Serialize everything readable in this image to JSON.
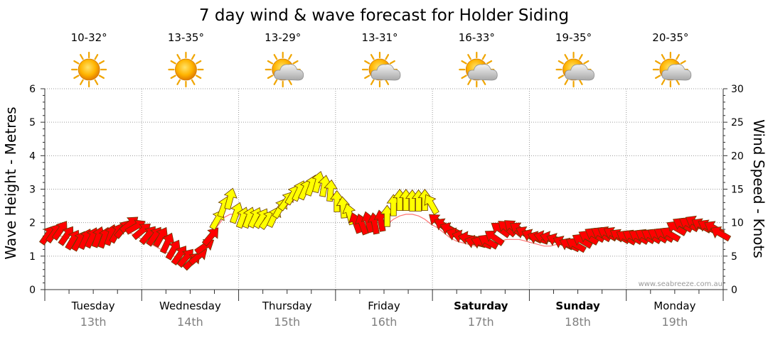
{
  "chart_data": {
    "type": "line",
    "title": "7 day wind & wave forecast for Holder Siding",
    "ylabel_left": "Wave Height - Metres",
    "ylabel_right": "Wind Speed - Knots",
    "ylim_left": [
      0,
      6
    ],
    "ylim_right": [
      0,
      30
    ],
    "yticks_left": [
      "0",
      "1",
      "2",
      "3",
      "4",
      "5",
      "6"
    ],
    "yticks_right": [
      "0",
      "5",
      "10",
      "15",
      "20",
      "25",
      "30"
    ],
    "grid": true,
    "watermark": "www.seabreeze.com.au",
    "days": [
      {
        "day": "Tuesday",
        "date": "13th",
        "temp": "10-32°",
        "icon": "sun-icon",
        "bold": false
      },
      {
        "day": "Wednesday",
        "date": "14th",
        "temp": "13-35°",
        "icon": "sun-icon",
        "bold": false
      },
      {
        "day": "Thursday",
        "date": "15th",
        "temp": "13-29°",
        "icon": "sun-cloud-icon",
        "bold": false
      },
      {
        "day": "Friday",
        "date": "16th",
        "temp": "13-31°",
        "icon": "sun-cloud-icon",
        "bold": false
      },
      {
        "day": "Saturday",
        "date": "17th",
        "temp": "16-33°",
        "icon": "sun-cloud-icon",
        "bold": true
      },
      {
        "day": "Sunday",
        "date": "18th",
        "temp": "19-35°",
        "icon": "sun-cloud-icon",
        "bold": true
      },
      {
        "day": "Monday",
        "date": "19th",
        "temp": "20-35°",
        "icon": "sun-cloud-icon",
        "bold": false
      }
    ],
    "series": [
      {
        "name": "Wind Speed",
        "units": "knots",
        "strong_color": "#ff0000",
        "light_color": "#ffff00",
        "values": [
          8.2,
          8.5,
          8.9,
          8.1,
          7.5,
          7.3,
          7.6,
          7.8,
          7.9,
          7.8,
          8.2,
          8.5,
          9.1,
          9.8,
          9.4,
          8.8,
          8.2,
          8.0,
          7.9,
          7.0,
          6.0,
          5.2,
          4.8,
          4.3,
          5.0,
          6.5,
          8.0,
          10.5,
          12.4,
          13.6,
          11.5,
          10.8,
          10.8,
          10.8,
          10.7,
          10.5,
          10.9,
          12.2,
          13.3,
          14.2,
          14.8,
          15.0,
          15.6,
          16.1,
          15.5,
          14.8,
          13.2,
          12.3,
          11.3,
          10.0,
          9.8,
          10.1,
          9.9,
          10.3,
          11.0,
          12.6,
          13.4,
          13.4,
          13.3,
          13.3,
          13.4,
          12.8,
          10.2,
          9.6,
          9.0,
          8.2,
          7.9,
          7.7,
          7.1,
          7.0,
          7.2,
          7.8,
          9.0,
          9.2,
          9.3,
          9.0,
          8.4,
          8.0,
          7.7,
          7.8,
          7.7,
          7.4,
          7.0,
          6.7,
          6.7,
          7.3,
          7.8,
          8.2,
          8.3,
          8.4,
          8.3,
          8.0,
          7.8,
          7.9,
          7.9,
          8.0,
          8.0,
          8.1,
          8.2,
          8.3,
          9.2,
          9.7,
          9.8,
          10.0,
          9.6,
          9.4,
          9.2,
          8.4
        ]
      },
      {
        "name": "Wave Height",
        "units": "metres",
        "color": "#ff0000",
        "values": [
          1.65,
          1.6,
          1.6,
          1.55,
          1.5,
          1.45,
          1.45,
          1.5,
          1.55,
          1.6,
          1.65,
          1.7,
          1.75,
          1.7,
          1.6,
          1.5,
          1.4,
          1.3,
          1.2,
          1.1,
          1.0,
          0.95,
          0.9,
          0.95,
          1.05,
          1.25,
          1.55,
          1.9,
          2.15,
          2.25,
          2.25,
          2.2,
          2.2,
          2.2,
          2.2,
          2.2,
          2.25,
          2.35,
          2.5,
          2.65,
          2.8,
          2.95,
          3.05,
          3.1,
          3.1,
          2.95,
          2.75,
          2.55,
          2.3,
          2.1,
          1.95,
          1.85,
          1.8,
          1.85,
          1.95,
          2.1,
          2.2,
          2.25,
          2.25,
          2.2,
          2.1,
          1.95,
          1.85,
          1.7,
          1.55,
          1.45,
          1.4,
          1.35,
          1.3,
          1.3,
          1.35,
          1.4,
          1.45,
          1.5,
          1.5,
          1.5,
          1.45,
          1.4,
          1.35,
          1.3,
          1.3,
          1.35,
          1.4,
          1.45,
          1.5,
          1.5,
          1.5,
          1.55,
          1.55,
          1.55,
          1.55,
          1.55,
          1.55,
          1.55,
          1.55,
          1.6,
          1.65,
          1.7,
          1.75,
          1.8,
          1.85,
          1.9,
          1.9,
          1.85,
          1.8,
          1.75,
          1.7,
          1.65
        ]
      }
    ],
    "wind_direction_deg": [
      35,
      35,
      35,
      35,
      30,
      30,
      25,
      25,
      20,
      20,
      20,
      30,
      40,
      50,
      60,
      50,
      40,
      35,
      30,
      25,
      30,
      35,
      40,
      45,
      50,
      55,
      40,
      30,
      20,
      15,
      20,
      20,
      20,
      25,
      30,
      35,
      25,
      30,
      35,
      30,
      25,
      25,
      20,
      15,
      10,
      5,
      0,
      355,
      345,
      340,
      340,
      345,
      350,
      350,
      0,
      0,
      0,
      0,
      0,
      0,
      0,
      330,
      310,
      300,
      295,
      290,
      285,
      280,
      285,
      290,
      300,
      305,
      305,
      310,
      310,
      305,
      300,
      295,
      290,
      285,
      285,
      290,
      295,
      295,
      300,
      300,
      300,
      300,
      300,
      300,
      300,
      300,
      300,
      300,
      300,
      300,
      300,
      300,
      300,
      300,
      300,
      300,
      300,
      300,
      300,
      300,
      300,
      300
    ]
  }
}
